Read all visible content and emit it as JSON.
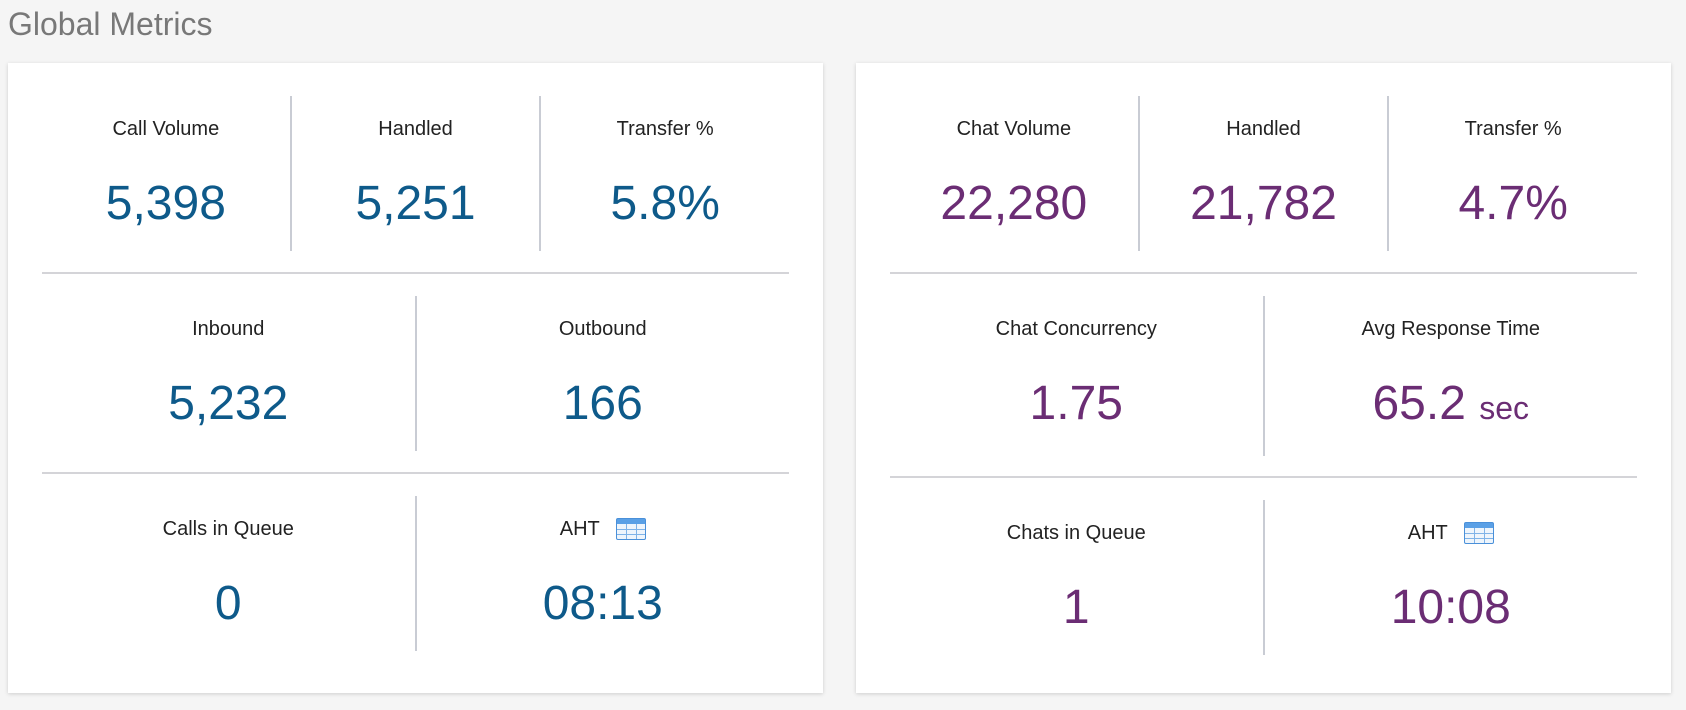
{
  "page": {
    "title": "Global Metrics"
  },
  "calls": {
    "call_volume": {
      "label": "Call Volume",
      "value": "5,398"
    },
    "handled": {
      "label": "Handled",
      "value": "5,251"
    },
    "transfer": {
      "label": "Transfer %",
      "value": "5.8%"
    },
    "inbound": {
      "label": "Inbound",
      "value": "5,232"
    },
    "outbound": {
      "label": "Outbound",
      "value": "166"
    },
    "queue": {
      "label": "Calls in Queue",
      "value": "0"
    },
    "aht": {
      "label": "AHT",
      "value": "08:13",
      "icon": "table-icon"
    }
  },
  "chats": {
    "chat_volume": {
      "label": "Chat Volume",
      "value": "22,280"
    },
    "handled": {
      "label": "Handled",
      "value": "21,782"
    },
    "transfer": {
      "label": "Transfer %",
      "value": "4.7%"
    },
    "concurrency": {
      "label": "Chat Concurrency",
      "value": "1.75"
    },
    "response": {
      "label": "Avg Response Time",
      "value": "65.2",
      "unit": "sec"
    },
    "queue": {
      "label": "Chats in Queue",
      "value": "1"
    },
    "aht": {
      "label": "AHT",
      "value": "10:08",
      "icon": "table-icon"
    }
  },
  "colors": {
    "call_value": "#0e5a8a",
    "chat_value": "#6b2d74",
    "page_background": "#f5f5f5",
    "panel_background": "#ffffff"
  }
}
